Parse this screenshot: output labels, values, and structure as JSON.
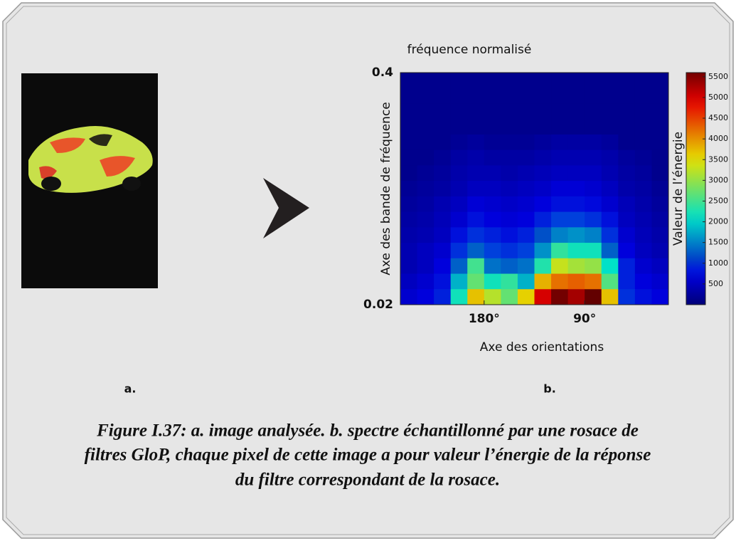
{
  "chart_data": {
    "type": "heatmap",
    "title": "fréquence normalisé",
    "ylabel": "Axe des bande de fréquence",
    "xlabel": "Axe des orientations",
    "colorbar_label": "Valeur de l’énergie",
    "xlim": [
      255,
      15
    ],
    "xticks": [
      {
        "value": 180,
        "label": "180°"
      },
      {
        "value": 90,
        "label": "90°"
      }
    ],
    "ylim": [
      0.02,
      0.4
    ],
    "yticks": [
      0.4,
      0.02
    ],
    "colormap": "jet",
    "clim": [
      0,
      5600
    ],
    "cticks": [
      500,
      1000,
      1500,
      2000,
      2500,
      3000,
      3500,
      4000,
      4500,
      5000,
      5500
    ],
    "z": [
      [
        150,
        150,
        150,
        150,
        150,
        150,
        150,
        150,
        150,
        150,
        150,
        150,
        150,
        150,
        150,
        150
      ],
      [
        150,
        150,
        150,
        150,
        150,
        150,
        150,
        150,
        150,
        150,
        150,
        150,
        150,
        150,
        150,
        150
      ],
      [
        150,
        150,
        150,
        150,
        150,
        150,
        150,
        150,
        150,
        150,
        150,
        150,
        150,
        150,
        150,
        150
      ],
      [
        150,
        150,
        150,
        150,
        150,
        150,
        150,
        150,
        150,
        150,
        150,
        150,
        150,
        150,
        150,
        150
      ],
      [
        150,
        150,
        150,
        200,
        250,
        200,
        200,
        200,
        250,
        300,
        300,
        300,
        250,
        150,
        150,
        150
      ],
      [
        150,
        150,
        200,
        300,
        350,
        300,
        300,
        300,
        350,
        400,
        400,
        400,
        350,
        250,
        200,
        150
      ],
      [
        150,
        200,
        250,
        350,
        400,
        400,
        350,
        400,
        450,
        500,
        500,
        500,
        400,
        300,
        250,
        150
      ],
      [
        200,
        250,
        300,
        400,
        500,
        500,
        450,
        500,
        550,
        650,
        650,
        600,
        500,
        350,
        300,
        200
      ],
      [
        250,
        300,
        400,
        500,
        650,
        600,
        550,
        600,
        700,
        800,
        800,
        750,
        600,
        450,
        350,
        250
      ],
      [
        300,
        350,
        450,
        600,
        800,
        700,
        650,
        700,
        900,
        1100,
        1100,
        1000,
        800,
        500,
        400,
        300
      ],
      [
        350,
        400,
        500,
        800,
        1000,
        900,
        800,
        900,
        1200,
        1500,
        1600,
        1500,
        1000,
        600,
        450,
        350
      ],
      [
        400,
        500,
        600,
        1000,
        1300,
        1100,
        1000,
        1100,
        1600,
        2400,
        2200,
        2200,
        1300,
        700,
        500,
        400
      ],
      [
        400,
        500,
        700,
        1300,
        2500,
        1400,
        1300,
        1400,
        2300,
        3300,
        3100,
        3000,
        2100,
        900,
        600,
        500
      ],
      [
        500,
        600,
        800,
        1800,
        2700,
        2200,
        2400,
        1800,
        3800,
        4200,
        4300,
        4200,
        2600,
        900,
        700,
        600
      ],
      [
        600,
        700,
        900,
        2200,
        3700,
        3200,
        2700,
        3600,
        5000,
        5600,
        5300,
        5700,
        3700,
        1000,
        800,
        700
      ]
    ]
  },
  "panel_labels": [
    "a.",
    "b."
  ],
  "caption": [
    "Figure I.37: a. image analysée. b. spectre échantillonné par une rosace de",
    "filtres GloP, chaque pixel de cette image a pour valeur l’énergie de la réponse",
    "du filtre correspondant de la rosace."
  ]
}
